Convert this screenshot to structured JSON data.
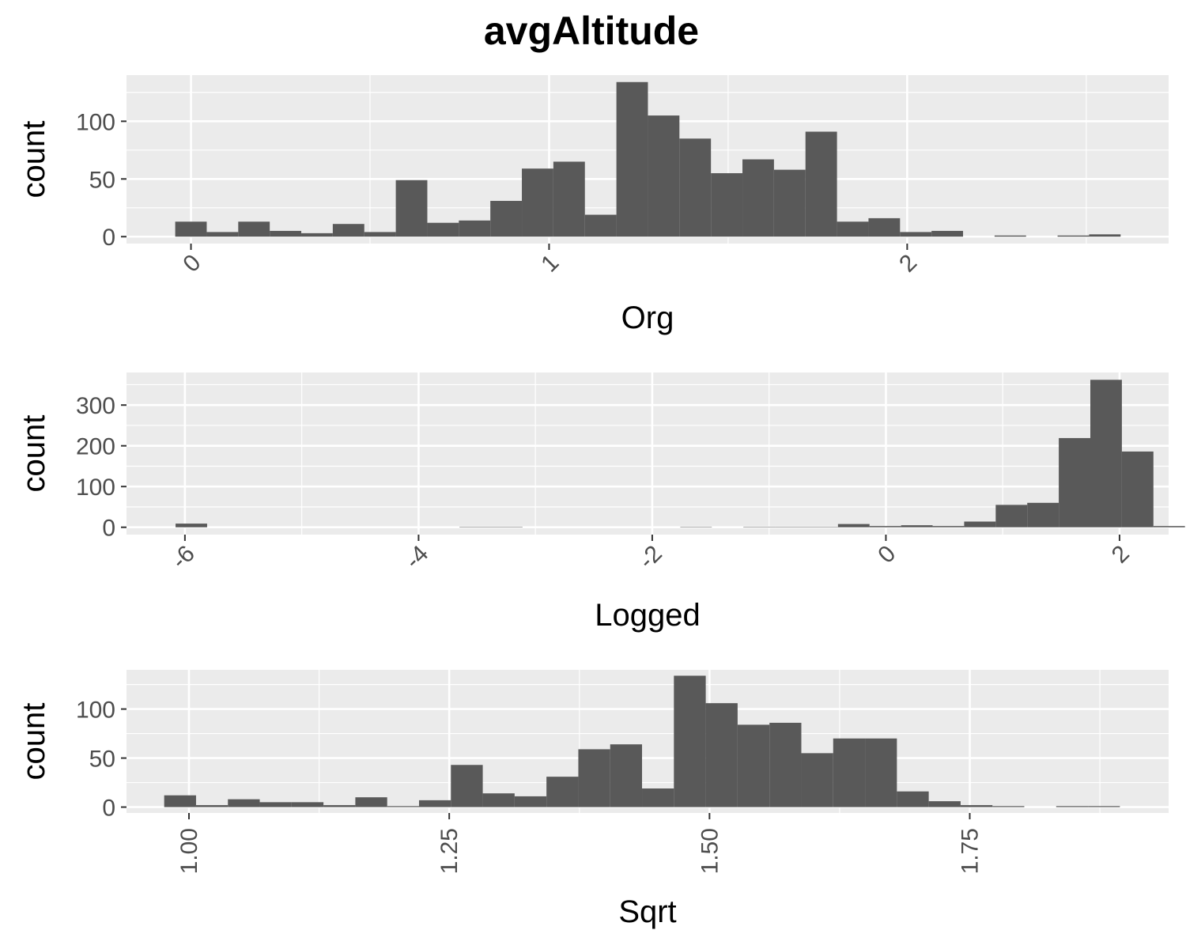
{
  "title": "avgAltitude",
  "colors": {
    "panel": "#ebebeb",
    "grid": "#ffffff",
    "bar": "#595959",
    "tick_text": "#4d4d4d",
    "text": "#000000"
  },
  "chart_data": [
    {
      "type": "bar",
      "subtype": "histogram",
      "xlabel": "Org",
      "ylabel": "count",
      "xlim": [
        -0.18,
        2.73
      ],
      "ylim": [
        -6,
        140
      ],
      "xticks": [
        0,
        1,
        2
      ],
      "xtick_labels": [
        "0",
        "1",
        "2"
      ],
      "xtick_rotation": -45,
      "yticks": [
        0,
        50,
        100
      ],
      "ytick_labels": [
        "0",
        "50",
        "100"
      ],
      "grid": true,
      "bin_start": -0.044,
      "bin_width": 0.088,
      "values": [
        13,
        4,
        13,
        5,
        3,
        11,
        4,
        49,
        12,
        14,
        31,
        59,
        65,
        19,
        134,
        105,
        85,
        55,
        67,
        58,
        91,
        13,
        16,
        4,
        5,
        0,
        1,
        0,
        1,
        2
      ]
    },
    {
      "type": "bar",
      "subtype": "histogram",
      "xlabel": "Logged",
      "ylabel": "count",
      "xlim": [
        -6.5,
        2.42
      ],
      "ylim": [
        -18,
        380
      ],
      "xticks": [
        -6,
        -4,
        -2,
        0,
        2
      ],
      "xtick_labels": [
        "-6",
        "-4",
        "-2",
        "0",
        "2"
      ],
      "xtick_rotation": -45,
      "yticks": [
        0,
        100,
        200,
        300
      ],
      "ytick_labels": [
        "0",
        "100",
        "200",
        "300"
      ],
      "grid": true,
      "bin_start": -6.08,
      "bin_width": 0.27,
      "values": [
        9,
        0,
        0,
        0,
        0,
        0,
        0,
        0,
        0,
        1,
        1,
        0,
        0,
        0,
        0,
        0,
        1,
        0,
        1,
        1,
        1,
        8,
        3,
        5,
        3,
        14,
        55,
        60,
        219,
        362,
        186,
        3
      ]
    },
    {
      "type": "bar",
      "subtype": "histogram",
      "xlabel": "Sqrt",
      "ylabel": "count",
      "xlim": [
        0.94,
        1.941
      ],
      "ylim": [
        -6,
        140
      ],
      "xticks": [
        1.0,
        1.25,
        1.5,
        1.75
      ],
      "xtick_labels": [
        "1.00",
        "1.25",
        "1.50",
        "1.75"
      ],
      "xtick_rotation": -90,
      "yticks": [
        0,
        50,
        100
      ],
      "ytick_labels": [
        "0",
        "50",
        "100"
      ],
      "grid": true,
      "bin_start": -1,
      "bin_width": 0.0306,
      "values": [
        12,
        2,
        8,
        5,
        5,
        2,
        10,
        1,
        7,
        43,
        14,
        11,
        31,
        59,
        64,
        19,
        134,
        106,
        84,
        86,
        55,
        70,
        70,
        16,
        6,
        2,
        1,
        0,
        1,
        1
      ]
    }
  ]
}
